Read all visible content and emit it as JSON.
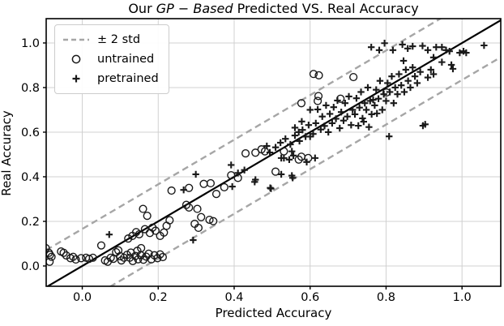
{
  "figure": {
    "title": {
      "prefix": "Our ",
      "italic": "GP − Based",
      "suffix": " Predicted VS. Real Accuracy"
    },
    "xlabel": "Predicted Accuracy",
    "ylabel": "Real Accuracy"
  },
  "legend": {
    "position": "upper left",
    "items": [
      {
        "label": "±  2 std",
        "marker": "dashed-line"
      },
      {
        "label": "untrained",
        "marker": "open-circle"
      },
      {
        "label": "pretrained",
        "marker": "plus"
      }
    ]
  },
  "chart_data": {
    "type": "scatter",
    "title": "Our GP − Based Predicted VS. Real Accuracy",
    "xlabel": "Predicted Accuracy",
    "ylabel": "Real Accuracy",
    "xlim": [
      -0.095,
      1.102
    ],
    "ylim": [
      -0.091,
      1.109
    ],
    "xticks": [
      0.0,
      0.2,
      0.4,
      0.6,
      0.8,
      1.0
    ],
    "yticks": [
      0.0,
      0.2,
      0.4,
      0.6,
      0.8,
      1.0
    ],
    "xtick_labels": [
      "0.0",
      "0.2",
      "0.4",
      "0.6",
      "0.8",
      "1.0"
    ],
    "ytick_labels": [
      "0.0",
      "0.2",
      "0.4",
      "0.6",
      "0.8",
      "1.0"
    ],
    "grid": true,
    "legend_position": "upper left",
    "style": {
      "grid_color": "#d0d0d0",
      "spine_color": "#000000",
      "identity_color": "#000000",
      "band_color": "#a6a6a6",
      "marker_color": "#1a1a1a",
      "background": "#ffffff"
    },
    "reference_lines": {
      "identity": {
        "slope": 1,
        "intercept": 0,
        "style": "solid",
        "label": "y = x"
      },
      "band_offset": 0.166,
      "band_style": "dashed",
      "band_label": "± 2 std"
    },
    "series": [
      {
        "name": "untrained",
        "marker": "open-circle",
        "points": [
          [
            -0.096,
            0.08
          ],
          [
            -0.088,
            0.059
          ],
          [
            -0.086,
            0.019
          ],
          [
            -0.085,
            0.05
          ],
          [
            -0.081,
            0.041
          ],
          [
            -0.056,
            0.065
          ],
          [
            -0.049,
            0.059
          ],
          [
            -0.042,
            0.047
          ],
          [
            -0.031,
            0.035
          ],
          [
            -0.024,
            0.041
          ],
          [
            -0.017,
            0.029
          ],
          [
            -0.003,
            0.035
          ],
          [
            0.01,
            0.037
          ],
          [
            0.018,
            0.032
          ],
          [
            0.028,
            0.037
          ],
          [
            0.05,
            0.092
          ],
          [
            0.06,
            0.025
          ],
          [
            0.067,
            0.019
          ],
          [
            0.075,
            0.037
          ],
          [
            0.082,
            0.032
          ],
          [
            0.089,
            0.062
          ],
          [
            0.095,
            0.07
          ],
          [
            0.1,
            0.044
          ],
          [
            0.103,
            0.025
          ],
          [
            0.11,
            0.037
          ],
          [
            0.118,
            0.05
          ],
          [
            0.125,
            0.037
          ],
          [
            0.128,
            0.06
          ],
          [
            0.133,
            0.022
          ],
          [
            0.14,
            0.045
          ],
          [
            0.145,
            0.068
          ],
          [
            0.147,
            0.03
          ],
          [
            0.154,
            0.048
          ],
          [
            0.155,
            0.08
          ],
          [
            0.161,
            0.028
          ],
          [
            0.168,
            0.042
          ],
          [
            0.175,
            0.055
          ],
          [
            0.182,
            0.03
          ],
          [
            0.19,
            0.048
          ],
          [
            0.198,
            0.035
          ],
          [
            0.205,
            0.052
          ],
          [
            0.212,
            0.04
          ],
          [
            0.121,
            0.123
          ],
          [
            0.132,
            0.135
          ],
          [
            0.142,
            0.152
          ],
          [
            0.15,
            0.142
          ],
          [
            0.16,
            0.256
          ],
          [
            0.165,
            0.165
          ],
          [
            0.171,
            0.225
          ],
          [
            0.178,
            0.148
          ],
          [
            0.185,
            0.172
          ],
          [
            0.193,
            0.158
          ],
          [
            0.205,
            0.135
          ],
          [
            0.215,
            0.15
          ],
          [
            0.222,
            0.18
          ],
          [
            0.23,
            0.205
          ],
          [
            0.235,
            0.338
          ],
          [
            0.274,
            0.274
          ],
          [
            0.281,
            0.262
          ],
          [
            0.281,
            0.35
          ],
          [
            0.296,
            0.189
          ],
          [
            0.303,
            0.256
          ],
          [
            0.306,
            0.171
          ],
          [
            0.313,
            0.219
          ],
          [
            0.32,
            0.368
          ],
          [
            0.335,
            0.207
          ],
          [
            0.338,
            0.371
          ],
          [
            0.345,
            0.201
          ],
          [
            0.353,
            0.323
          ],
          [
            0.374,
            0.353
          ],
          [
            0.392,
            0.407
          ],
          [
            0.41,
            0.395
          ],
          [
            0.43,
            0.505
          ],
          [
            0.456,
            0.508
          ],
          [
            0.472,
            0.523
          ],
          [
            0.481,
            0.514
          ],
          [
            0.509,
            0.423
          ],
          [
            0.531,
            0.514
          ],
          [
            0.57,
            0.477
          ],
          [
            0.577,
            0.49
          ],
          [
            0.595,
            0.484
          ],
          [
            0.577,
            0.73
          ],
          [
            0.609,
            0.861
          ],
          [
            0.62,
            0.74
          ],
          [
            0.622,
            0.762
          ],
          [
            0.623,
            0.855
          ],
          [
            0.68,
            0.75
          ],
          [
            0.714,
            0.847
          ],
          [
            0.801,
            0.778
          ]
        ]
      },
      {
        "name": "pretrained",
        "marker": "plus",
        "points": [
          [
            0.071,
            0.141
          ],
          [
            0.267,
            0.341
          ],
          [
            0.292,
            0.116
          ],
          [
            0.299,
            0.411
          ],
          [
            0.392,
            0.453
          ],
          [
            0.395,
            0.356
          ],
          [
            0.41,
            0.417
          ],
          [
            0.427,
            0.43
          ],
          [
            0.454,
            0.377
          ],
          [
            0.456,
            0.387
          ],
          [
            0.486,
            0.538
          ],
          [
            0.494,
            0.509
          ],
          [
            0.495,
            0.35
          ],
          [
            0.497,
            0.347
          ],
          [
            0.509,
            0.532
          ],
          [
            0.522,
            0.553
          ],
          [
            0.524,
            0.411
          ],
          [
            0.524,
            0.484
          ],
          [
            0.531,
            0.484
          ],
          [
            0.535,
            0.57
          ],
          [
            0.545,
            0.477
          ],
          [
            0.548,
            0.545
          ],
          [
            0.552,
            0.405
          ],
          [
            0.552,
            0.514
          ],
          [
            0.554,
            0.395
          ],
          [
            0.556,
            0.495
          ],
          [
            0.56,
            0.585
          ],
          [
            0.572,
            0.56
          ],
          [
            0.58,
            0.61
          ],
          [
            0.591,
            0.466
          ],
          [
            0.6,
            0.58
          ],
          [
            0.613,
            0.484
          ],
          [
            0.56,
            0.62
          ],
          [
            0.57,
            0.6
          ],
          [
            0.578,
            0.648
          ],
          [
            0.588,
            0.58
          ],
          [
            0.596,
            0.632
          ],
          [
            0.6,
            0.7
          ],
          [
            0.608,
            0.592
          ],
          [
            0.615,
            0.64
          ],
          [
            0.62,
            0.702
          ],
          [
            0.628,
            0.612
          ],
          [
            0.632,
            0.67
          ],
          [
            0.638,
            0.628
          ],
          [
            0.642,
            0.72
          ],
          [
            0.648,
            0.6
          ],
          [
            0.652,
            0.682
          ],
          [
            0.658,
            0.64
          ],
          [
            0.662,
            0.712
          ],
          [
            0.668,
            0.66
          ],
          [
            0.672,
            0.742
          ],
          [
            0.678,
            0.618
          ],
          [
            0.682,
            0.69
          ],
          [
            0.688,
            0.652
          ],
          [
            0.692,
            0.73
          ],
          [
            0.698,
            0.67
          ],
          [
            0.702,
            0.76
          ],
          [
            0.708,
            0.632
          ],
          [
            0.712,
            0.7
          ],
          [
            0.718,
            0.68
          ],
          [
            0.722,
            0.752
          ],
          [
            0.727,
            0.629
          ],
          [
            0.73,
            0.71
          ],
          [
            0.734,
            0.78
          ],
          [
            0.738,
            0.662
          ],
          [
            0.741,
            0.647
          ],
          [
            0.744,
            0.73
          ],
          [
            0.748,
            0.7
          ],
          [
            0.752,
            0.8
          ],
          [
            0.755,
            0.623
          ],
          [
            0.758,
            0.74
          ],
          [
            0.762,
            0.68
          ],
          [
            0.766,
            0.745
          ],
          [
            0.77,
            0.72
          ],
          [
            0.774,
            0.79
          ],
          [
            0.776,
            0.684
          ],
          [
            0.78,
            0.75
          ],
          [
            0.784,
            0.83
          ],
          [
            0.79,
            0.7
          ],
          [
            0.794,
            0.77
          ],
          [
            0.8,
            0.74
          ],
          [
            0.804,
            0.82
          ],
          [
            0.81,
            0.78
          ],
          [
            0.815,
            0.85
          ],
          [
            0.82,
            0.73
          ],
          [
            0.824,
            0.8
          ],
          [
            0.83,
            0.77
          ],
          [
            0.834,
            0.86
          ],
          [
            0.84,
            0.81
          ],
          [
            0.848,
            0.78
          ],
          [
            0.852,
            0.88
          ],
          [
            0.858,
            0.83
          ],
          [
            0.864,
            0.8
          ],
          [
            0.87,
            0.89
          ],
          [
            0.876,
            0.85
          ],
          [
            0.882,
            0.82
          ],
          [
            0.89,
            0.87
          ],
          [
            0.91,
            0.845
          ],
          [
            0.918,
            0.88
          ],
          [
            0.925,
            0.935
          ],
          [
            0.846,
            0.92
          ],
          [
            0.857,
            0.975
          ],
          [
            0.761,
            0.981
          ],
          [
            0.782,
            0.968
          ],
          [
            0.796,
            0.999
          ],
          [
            0.818,
            0.968
          ],
          [
            0.843,
            0.993
          ],
          [
            0.87,
            0.985
          ],
          [
            0.896,
            0.987
          ],
          [
            0.91,
            0.968
          ],
          [
            0.932,
            0.981
          ],
          [
            0.947,
            0.981
          ],
          [
            0.947,
            0.914
          ],
          [
            0.958,
            0.968
          ],
          [
            0.967,
            0.963
          ],
          [
            0.972,
            0.902
          ],
          [
            0.976,
            0.884
          ],
          [
            0.994,
            0.956
          ],
          [
            1.004,
            0.963
          ],
          [
            1.011,
            0.956
          ],
          [
            1.058,
            0.989
          ],
          [
            0.925,
            0.86
          ],
          [
            0.808,
            0.581
          ],
          [
            0.897,
            0.629
          ],
          [
            0.903,
            0.635
          ]
        ]
      }
    ]
  }
}
